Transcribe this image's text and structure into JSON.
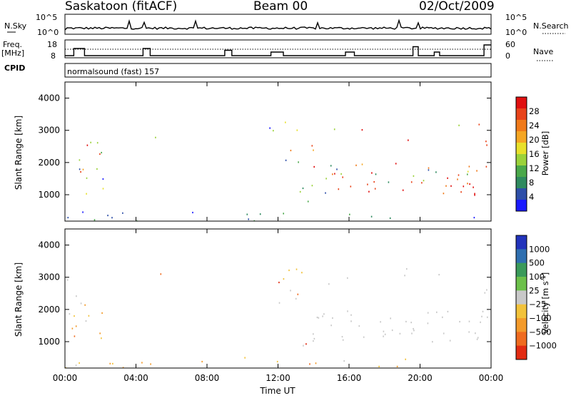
{
  "header": {
    "station": "Saskatoon (fitACF)",
    "beam": "Beam 00",
    "date": "02/Oct/2009"
  },
  "top_panels": {
    "nsky_label": "N.Sky",
    "nsky_ticks": [
      "10^5",
      "10^0"
    ],
    "nsearch_label": "N.Search",
    "nsearch_ticks": [
      "10^5",
      "10^0"
    ],
    "freq_label": "Freq.",
    "freq_unit": "[MHz]",
    "freq_ticks": [
      "18",
      "8"
    ],
    "nave_label": "Nave",
    "nave_ticks": [
      "60",
      "0"
    ],
    "cpid_label": "CPID",
    "cpid_text": "normalsound (fast) 157"
  },
  "chart_data": [
    {
      "type": "heatmap",
      "name": "power-panel",
      "ylabel": "Slant Range [km]",
      "xlabel": "",
      "x_range_hours": [
        0,
        24
      ],
      "ylim": [
        180,
        4500
      ],
      "y_ticks": [
        "1000",
        "2000",
        "3000",
        "4000"
      ],
      "x_ticks": [
        "00:00",
        "04:00",
        "08:00",
        "12:00",
        "16:00",
        "20:00",
        "00:00"
      ],
      "colorbar": {
        "label": "Power [dB]",
        "ticks": [
          "4",
          "8",
          "12",
          "16",
          "20",
          "24",
          "28"
        ],
        "colors": [
          "#1a1aff",
          "#2e4fa8",
          "#2f8a5f",
          "#4aa84a",
          "#9bd23a",
          "#e8e02a",
          "#f5a623",
          "#f07a1a",
          "#e8431a",
          "#e01010"
        ]
      }
    },
    {
      "type": "heatmap",
      "name": "velocity-panel",
      "ylabel": "Slant Range [km]",
      "xlabel": "Time UT",
      "x_range_hours": [
        0,
        24
      ],
      "ylim": [
        180,
        4500
      ],
      "y_ticks": [
        "1000",
        "2000",
        "3000",
        "4000"
      ],
      "x_ticks": [
        "00:00",
        "04:00",
        "08:00",
        "12:00",
        "16:00",
        "20:00",
        "00:00"
      ],
      "colorbar": {
        "label_main": "Velocity",
        "label_unit": "[m s",
        "label_exp": "-1",
        "label_close": "]",
        "ticks": [
          "1000",
          "500",
          "100",
          "25",
          "−25",
          "−100",
          "−500",
          "−1000"
        ],
        "colors": [
          "#2233bb",
          "#2f6fb0",
          "#3a9a5a",
          "#6cc04a",
          "#c8c8c8",
          "#f2c23a",
          "#f39a2a",
          "#ef6b1f",
          "#e22b12"
        ]
      }
    }
  ],
  "frequency_trace_mhz_hours": [
    [
      0,
      10
    ],
    [
      0.5,
      10
    ],
    [
      0.5,
      14
    ],
    [
      1.1,
      14
    ],
    [
      1.1,
      10
    ],
    [
      4.4,
      10
    ],
    [
      4.4,
      14
    ],
    [
      4.8,
      14
    ],
    [
      4.8,
      10
    ],
    [
      9.0,
      10
    ],
    [
      9.0,
      13
    ],
    [
      9.4,
      13
    ],
    [
      9.4,
      10
    ],
    [
      11.6,
      10
    ],
    [
      11.6,
      12
    ],
    [
      12.3,
      12
    ],
    [
      12.3,
      10
    ],
    [
      15.8,
      10
    ],
    [
      15.8,
      12
    ],
    [
      16.3,
      12
    ],
    [
      16.3,
      10
    ],
    [
      19.6,
      10
    ],
    [
      19.6,
      15
    ],
    [
      19.9,
      15
    ],
    [
      19.9,
      10
    ],
    [
      20.8,
      10
    ],
    [
      20.8,
      12
    ],
    [
      21.1,
      12
    ],
    [
      21.1,
      10
    ],
    [
      23.6,
      10
    ],
    [
      23.6,
      16
    ],
    [
      24,
      16
    ]
  ]
}
